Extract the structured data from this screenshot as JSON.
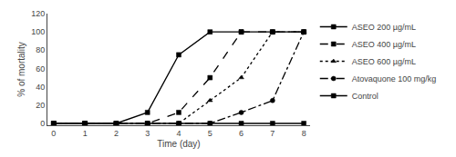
{
  "chart_data": {
    "type": "line",
    "x_label": "Time (day)",
    "y_label": "% of mortality",
    "x": [
      0,
      1,
      2,
      3,
      4,
      5,
      6,
      7,
      8
    ],
    "series": [
      {
        "name": "ASEO 200 µg/mL",
        "color": "black",
        "marker": "square",
        "line_style": "solid",
        "values": [
          0,
          0,
          0,
          12,
          75,
          100,
          100,
          100,
          100
        ]
      },
      {
        "name": "ASEO 400 µg/mL",
        "color": "black",
        "marker": "square",
        "line_style": "dashed",
        "values": [
          0,
          0,
          0,
          0,
          12,
          50,
          100,
          100,
          100
        ]
      },
      {
        "name": "ASEO 600 µg/mL",
        "color": "black",
        "marker": "triangle",
        "line_style": "dotted",
        "values": [
          0,
          0,
          0,
          0,
          0,
          25,
          50,
          100,
          100
        ]
      },
      {
        "name": "Atovaquone 100 mg/kg",
        "color": "black",
        "marker": "circle",
        "line_style": "dashdot",
        "values": [
          0,
          0,
          0,
          0,
          0,
          0,
          12,
          25,
          100
        ]
      },
      {
        "name": "Control",
        "color": "black",
        "marker": "square",
        "line_style": "solid",
        "values": [
          0,
          0,
          0,
          0,
          0,
          0,
          0,
          0,
          0
        ]
      }
    ],
    "xlim": [
      -0.2,
      8.2
    ],
    "xticks": [
      0,
      1,
      2,
      3,
      4,
      5,
      6,
      7,
      8
    ],
    "ylim": [
      -2,
      120
    ],
    "yticks": [
      0,
      20,
      40,
      60,
      80,
      100,
      120
    ],
    "grid": false,
    "legend": "right"
  }
}
